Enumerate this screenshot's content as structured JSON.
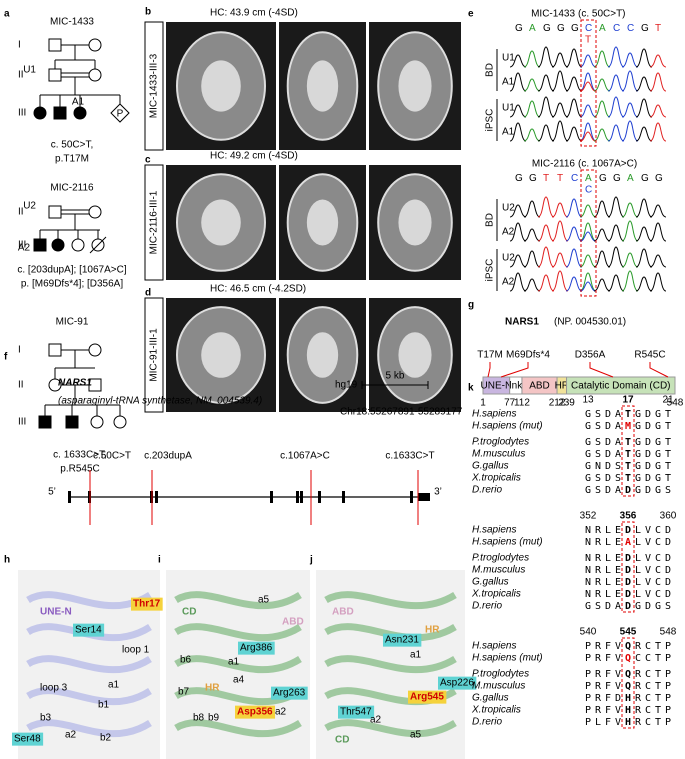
{
  "panel_labels": [
    "a",
    "b",
    "c",
    "d",
    "e",
    "f",
    "g",
    "h",
    "i",
    "j",
    "k"
  ],
  "a": {
    "families": [
      {
        "name": "MIC-1433",
        "generations": [
          "I",
          "II",
          "III"
        ],
        "ids": [
          "U1",
          "A1"
        ],
        "proband": "P",
        "variant": "c. 50C>T,",
        "protein": "p.T17M"
      },
      {
        "name": "MIC-2116",
        "generations": [
          "II",
          "III"
        ],
        "ids": [
          "U2",
          "A2"
        ],
        "variant": "c. [203dupA]; [1067A>C]",
        "protein": "p. [M69Dfs*4]; [D356A]"
      },
      {
        "name": "MIC-91",
        "generations": [
          "I",
          "II",
          "III"
        ],
        "variant": "c. 1633C>T,",
        "protein": "p.R545C"
      }
    ]
  },
  "mri": [
    {
      "hc": "HC: 43.9 cm (-4SD)",
      "id": "MIC-1433-III-3"
    },
    {
      "hc": "HC: 49.2 cm (-4SD)",
      "id": "MIC-2116-III-1"
    },
    {
      "hc": "HC: 46.5 cm (-4.2SD)",
      "id": "MIC-91-III-1"
    }
  ],
  "e": {
    "blocks": [
      {
        "title": "MIC-1433",
        "variant": "(c. 50C>T)",
        "sequence": "GAGGGCACCGT",
        "alt": "T",
        "groups": [
          {
            "name": "BD",
            "samples": [
              "U1",
              "A1"
            ]
          },
          {
            "name": "iPSC",
            "samples": [
              "U1",
              "A1"
            ]
          }
        ]
      },
      {
        "title": "MIC-2116",
        "variant": "(c. 1067A>C)",
        "sequence": "GGTTCAGGAGG",
        "alt": "C",
        "groups": [
          {
            "name": "BD",
            "samples": [
              "U2",
              "A2"
            ]
          },
          {
            "name": "iPSC",
            "samples": [
              "U2",
              "A2"
            ]
          }
        ]
      }
    ]
  },
  "f": {
    "gene": "NARS1",
    "description": "(asparaginyl-tRNA synthetase, NM_004539.4)",
    "build": "hg19",
    "scale": "5 kb",
    "coords": "Chr18:55267891-55289177",
    "variants": [
      "c.50C>T",
      "c.203dupA",
      "c.1067A>C",
      "c.1633C>T"
    ],
    "ends": [
      "5’",
      "3’"
    ]
  },
  "g": {
    "gene": "NARS1",
    "accession": "(NP. 004530.01)",
    "mutations": [
      "T17M",
      "M69Dfs*4",
      "D356A",
      "R545C"
    ],
    "domains": [
      "UNE-N",
      "lnk",
      "ABD",
      "HR",
      "Catalytic Domain (CD)"
    ],
    "positions": [
      1,
      77,
      112,
      212,
      239,
      548
    ]
  },
  "structures": [
    {
      "labels": [
        "UNE-N",
        "Thr17",
        "Ser14",
        "loop 1",
        "loop 3",
        "a1",
        "b1",
        "b2",
        "b3",
        "a2",
        "Ser48"
      ]
    },
    {
      "labels": [
        "CD",
        "ABD",
        "Arg386",
        "a5",
        "a1",
        "a4",
        "Arg263",
        "HR",
        "Asp356",
        "b6",
        "b7",
        "b8",
        "b9",
        "a2"
      ]
    },
    {
      "labels": [
        "ABD",
        "HR",
        "Asn231",
        "a1",
        "Asp226",
        "Arg545",
        "Thr547",
        "a2",
        "a5",
        "CD"
      ]
    }
  ],
  "k": {
    "blocks": [
      {
        "positions": [
          13,
          17,
          21
        ],
        "species": [
          "H.sapiens",
          "H.sapiens (mut)",
          "P.troglodytes",
          "M.musculus",
          "G.gallus",
          "X.tropicalis",
          "D.rerio"
        ],
        "sequences": [
          "GSDATGDGT",
          "GSDAMGDGT",
          "GSDATGDGT",
          "GSDATGDGT",
          "GNDSTGDGT",
          "GSDSTGDGT",
          "GSDADGDGS"
        ]
      },
      {
        "positions": [
          352,
          356,
          360
        ],
        "species": [
          "H.sapiens",
          "H.sapiens (mut)",
          "P.troglodytes",
          "M.musculus",
          "G.gallus",
          "X.tropicalis",
          "D.rerio"
        ],
        "sequences": [
          "NRLEDLVCD",
          "NRLEALVCD",
          "NRLEDLVCD",
          "NRLEDLVCD",
          "NRLEDLVCD",
          "NRLEDLVCD",
          "GSDADGDGS"
        ]
      },
      {
        "positions": [
          540,
          545,
          548
        ],
        "species": [
          "H.sapiens",
          "H.sapiens (mut)",
          "P.troglodytes",
          "M.musculus",
          "G.gallus",
          "X.tropicalis",
          "D.rerio"
        ],
        "sequences": [
          "PRFVQRCTP",
          "PRFVQCCTP",
          "PRFVQRCTP",
          "PRFVQRCTP",
          "PRFDHRCTP",
          "PRFVHRCTP",
          "PLFVHRCTP"
        ]
      }
    ]
  }
}
